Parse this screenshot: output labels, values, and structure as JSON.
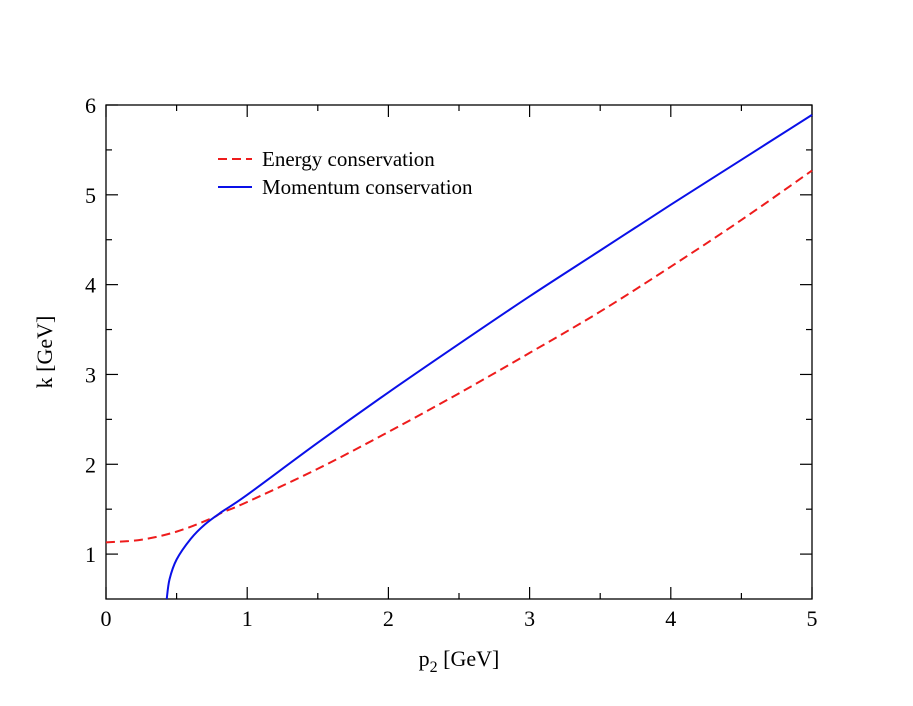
{
  "chart_data": {
    "type": "line",
    "title": "",
    "xlabel": "p",
    "xlabel_sub": "2",
    "xlabel_unit": " [GeV]",
    "ylabel": "k [GeV]",
    "xlim": [
      0,
      5
    ],
    "ylim": [
      0.5,
      6
    ],
    "xticks": [
      0,
      1,
      2,
      3,
      4,
      5
    ],
    "yticks": [
      1,
      2,
      3,
      4,
      5,
      6
    ],
    "xtick_labels": [
      "0",
      "1",
      "2",
      "3",
      "4",
      "5"
    ],
    "ytick_labels": [
      "1",
      "2",
      "3",
      "4",
      "5",
      "6"
    ],
    "grid": false,
    "legend_position": "top-left",
    "series": [
      {
        "name": "Energy conservation",
        "color": "#ee1c1c",
        "style": "dashed",
        "x": [
          0,
          0.25,
          0.5,
          0.75,
          0.82,
          1,
          1.5,
          2,
          2.5,
          3,
          3.5,
          4,
          4.5,
          5
        ],
        "y": [
          1.13,
          1.16,
          1.25,
          1.4,
          1.46,
          1.58,
          1.95,
          2.36,
          2.79,
          3.24,
          3.7,
          4.2,
          4.72,
          5.27
        ]
      },
      {
        "name": "Momentum conservation",
        "color": "#0a10e8",
        "style": "solid",
        "x": [
          0.43,
          0.45,
          0.5,
          0.6,
          0.7,
          0.82,
          1,
          1.5,
          2,
          2.5,
          3,
          3.5,
          4,
          4.5,
          5
        ],
        "y": [
          0.5,
          0.72,
          0.94,
          1.17,
          1.33,
          1.47,
          1.66,
          2.24,
          2.8,
          3.34,
          3.87,
          4.38,
          4.89,
          5.39,
          5.89
        ]
      }
    ]
  }
}
